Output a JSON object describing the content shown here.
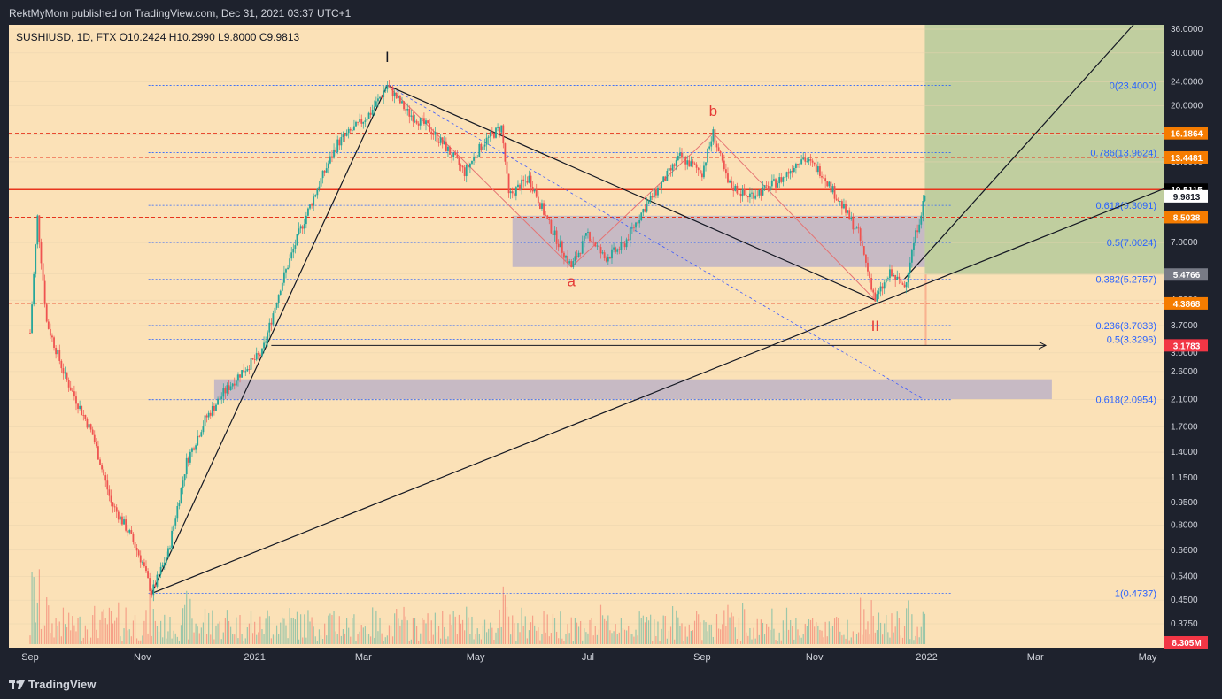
{
  "header": {
    "published": "RektMyMom published on TradingView.com, Dec 31, 2021 03:37 UTC+1"
  },
  "legend": {
    "text": "SUSHIUSD, 1D, FTX  O10.2424  H10.2990  L9.8000  C9.9813"
  },
  "footer": {
    "brand": "TradingView"
  },
  "chart_data": {
    "type": "candlestick",
    "symbol": "SUSHIUSD",
    "interval": "1D",
    "exchange": "FTX",
    "ohlc": {
      "open": 10.2424,
      "high": 10.299,
      "low": 9.8,
      "close": 9.9813
    },
    "price_scale": "log",
    "y_ticks": [
      36,
      30,
      24,
      20,
      16,
      13,
      10,
      8.5,
      7,
      5.5,
      4.5,
      3.7,
      3,
      2.6,
      2.1,
      1.7,
      1.4,
      1.15,
      0.95,
      0.8,
      0.66,
      0.54,
      0.45,
      0.375
    ],
    "y_tick_labels": [
      "36.0000",
      "30.0000",
      "24.0000",
      "20.0000",
      "16.0000",
      "13.0000",
      "10.0000",
      "8.5000",
      "7.0000",
      "5.5000",
      "4.5000",
      "3.7000",
      "3.0000",
      "2.6000",
      "2.1000",
      "1.7000",
      "1.4000",
      "1.1500",
      "0.9500",
      "0.8000",
      "0.6600",
      "0.5400",
      "0.4500",
      "0.3750"
    ],
    "x_ticks": [
      {
        "label": "Sep",
        "date": "2020-09-01"
      },
      {
        "label": "Nov",
        "date": "2020-11-01"
      },
      {
        "label": "2021",
        "date": "2021-01-01"
      },
      {
        "label": "Mar",
        "date": "2021-03-01"
      },
      {
        "label": "May",
        "date": "2021-05-01"
      },
      {
        "label": "Jul",
        "date": "2021-07-01"
      },
      {
        "label": "Sep",
        "date": "2021-09-01"
      },
      {
        "label": "Nov",
        "date": "2021-11-01"
      },
      {
        "label": "2022",
        "date": "2022-01-01"
      },
      {
        "label": "Mar",
        "date": "2022-03-01"
      },
      {
        "label": "May",
        "date": "2022-05-01"
      }
    ],
    "price_path": [
      [
        "2020-09-01",
        3.5
      ],
      [
        "2020-09-05",
        8.5
      ],
      [
        "2020-09-10",
        3.8
      ],
      [
        "2020-09-20",
        2.5
      ],
      [
        "2020-10-05",
        1.6
      ],
      [
        "2020-10-15",
        0.95
      ],
      [
        "2020-10-25",
        0.75
      ],
      [
        "2020-11-01",
        0.6
      ],
      [
        "2020-11-06",
        0.4737
      ],
      [
        "2020-11-15",
        0.65
      ],
      [
        "2020-11-25",
        1.3
      ],
      [
        "2020-12-05",
        1.8
      ],
      [
        "2020-12-15",
        2.2
      ],
      [
        "2020-12-25",
        2.6
      ],
      [
        "2021-01-05",
        3.0
      ],
      [
        "2021-01-15",
        5.0
      ],
      [
        "2021-01-25",
        7.5
      ],
      [
        "2021-02-05",
        11
      ],
      [
        "2021-02-15",
        15
      ],
      [
        "2021-02-25",
        17
      ],
      [
        "2021-03-05",
        19
      ],
      [
        "2021-03-14",
        23.4
      ],
      [
        "2021-03-25",
        19
      ],
      [
        "2021-04-05",
        17
      ],
      [
        "2021-04-15",
        14.5
      ],
      [
        "2021-04-25",
        12
      ],
      [
        "2021-05-05",
        15
      ],
      [
        "2021-05-15",
        17
      ],
      [
        "2021-05-19",
        10
      ],
      [
        "2021-05-30",
        11.5
      ],
      [
        "2021-06-10",
        8
      ],
      [
        "2021-06-22",
        5.8
      ],
      [
        "2021-07-01",
        7.5
      ],
      [
        "2021-07-10",
        6.2
      ],
      [
        "2021-07-20",
        6.8
      ],
      [
        "2021-07-31",
        9
      ],
      [
        "2021-08-10",
        11
      ],
      [
        "2021-08-20",
        13.5
      ],
      [
        "2021-09-01",
        12
      ],
      [
        "2021-09-07",
        16.2
      ],
      [
        "2021-09-15",
        11
      ],
      [
        "2021-09-25",
        10
      ],
      [
        "2021-10-05",
        10.5
      ],
      [
        "2021-10-15",
        11.5
      ],
      [
        "2021-10-25",
        13.5
      ],
      [
        "2021-11-05",
        12
      ],
      [
        "2021-11-15",
        9.5
      ],
      [
        "2021-11-25",
        7.5
      ],
      [
        "2021-12-04",
        4.5
      ],
      [
        "2021-12-12",
        5.5
      ],
      [
        "2021-12-20",
        5.0
      ],
      [
        "2021-12-25",
        7.0
      ],
      [
        "2021-12-31",
        9.9813
      ]
    ],
    "wave_labels": [
      {
        "text": "I",
        "date": "2021-03-14",
        "price": 28
      },
      {
        "text": "b",
        "date": "2021-09-07",
        "price": 18.5
      },
      {
        "text": "a",
        "date": "2021-06-22",
        "price": 5.0
      },
      {
        "text": "II",
        "date": "2021-12-04",
        "price": 3.55
      }
    ],
    "fib_levels": [
      {
        "label": "0(23.4000)",
        "ratio": 0,
        "price": 23.4
      },
      {
        "label": "0.786(13.9624)",
        "ratio": 0.786,
        "price": 13.9624
      },
      {
        "label": "0.618(9.3091)",
        "ratio": 0.618,
        "price": 9.3091
      },
      {
        "label": "0.5(7.0024)",
        "ratio": 0.5,
        "price": 7.0024
      },
      {
        "label": "0.382(5.2757)",
        "ratio": 0.382,
        "price": 5.2757
      },
      {
        "label": "0.236(3.7033)",
        "ratio": 0.236,
        "price": 3.7033
      },
      {
        "label": "0.5(3.3296)",
        "ratio": 0.5,
        "price": 3.3296
      },
      {
        "label": "0.618(2.0954)",
        "ratio": 0.618,
        "price": 2.0954
      },
      {
        "label": "1(0.4737)",
        "ratio": 1,
        "price": 0.4737
      }
    ],
    "price_tags": [
      {
        "value": "16.1864",
        "price": 16.1864,
        "color": "#f57c00"
      },
      {
        "value": "13.4481",
        "price": 13.4481,
        "color": "#f57c00"
      },
      {
        "value": "10.5115",
        "price": 10.5115,
        "color": "#000000"
      },
      {
        "value": "9.9813",
        "price": 9.9813,
        "color": "#ffffff"
      },
      {
        "value": "8.5038",
        "price": 8.5038,
        "color": "#f57c00"
      },
      {
        "value": "5.4766",
        "price": 5.4766,
        "color": "#787b86"
      },
      {
        "value": "4.3868",
        "price": 4.3868,
        "color": "#f57c00"
      },
      {
        "value": "3.1783",
        "price": 3.1783,
        "color": "#f23645"
      },
      {
        "value": "8.305M",
        "price": 0.3,
        "color": "#f23645"
      }
    ],
    "horizontal_levels": [
      {
        "price": 16.1864,
        "color": "#e8341c",
        "style": "dashed"
      },
      {
        "price": 13.4481,
        "color": "#e8341c",
        "style": "dashed"
      },
      {
        "price": 10.5115,
        "color": "#e8341c",
        "style": "solid"
      },
      {
        "price": 8.5038,
        "color": "#e8341c",
        "style": "dashed"
      },
      {
        "price": 4.3868,
        "color": "#e8341c",
        "style": "dashed"
      }
    ],
    "zones": [
      {
        "name": "range",
        "from": "2021-05-21",
        "to": "2021-12-31",
        "low": 5.8,
        "high": 8.6
      },
      {
        "name": "demand",
        "from": "2020-12-10",
        "to": "2022-03-10",
        "low": 2.1,
        "high": 2.45
      }
    ],
    "trade_box": {
      "from": "2021-12-31",
      "to": "2022-05-15",
      "entry": 5.4766,
      "target": 36,
      "stop": 3.1783
    },
    "colors": {
      "background": "#fbe1b7",
      "bull": "#26a69a",
      "bear": "#ef5350",
      "text": "#131722",
      "fib": "#2962ff"
    }
  }
}
